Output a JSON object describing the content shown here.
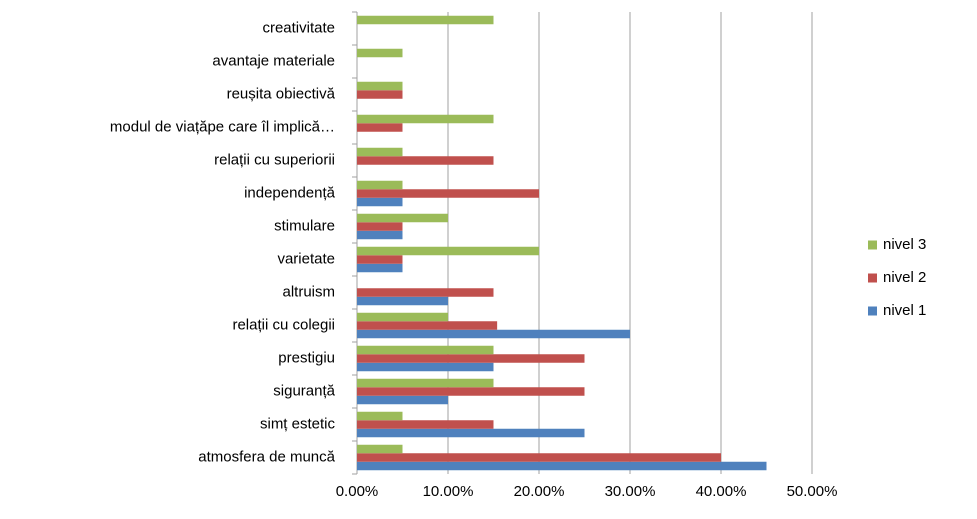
{
  "chart_data": {
    "type": "bar",
    "orientation": "horizontal",
    "categories": [
      "atmosfera de muncă",
      "simț estetic",
      "siguranță",
      "prestigiu",
      "relații cu colegii",
      "altruism",
      "varietate",
      "stimulare",
      "independență",
      "relații cu superiorii",
      "modul de viațăpe care îl implică…",
      "reușita obiectivă",
      "avantaje materiale",
      "creativitate"
    ],
    "series": [
      {
        "name": "nivel 1",
        "color": "#4f81bd",
        "values": [
          45,
          25,
          10,
          15,
          30,
          10,
          5,
          5,
          5,
          0,
          0,
          0,
          0,
          0
        ]
      },
      {
        "name": "nivel 2",
        "color": "#c0504d",
        "values": [
          40,
          15,
          25,
          25,
          15.4,
          15,
          5,
          5,
          20,
          15,
          5,
          5,
          0,
          0
        ]
      },
      {
        "name": "nivel 3",
        "color": "#9bbb59",
        "values": [
          5,
          5,
          15,
          15,
          10,
          0,
          20,
          10,
          5,
          5,
          15,
          5,
          5,
          15
        ]
      }
    ],
    "xlim": [
      0,
      50
    ],
    "xticks": [
      {
        "value": 0,
        "label": "0.00%"
      },
      {
        "value": 10,
        "label": "10.00%"
      },
      {
        "value": 20,
        "label": "20.00%"
      },
      {
        "value": 30,
        "label": "30.00%"
      },
      {
        "value": 40,
        "label": "40.00%"
      },
      {
        "value": 50,
        "label": "50.00%"
      }
    ],
    "grid": true,
    "legend": "right"
  }
}
